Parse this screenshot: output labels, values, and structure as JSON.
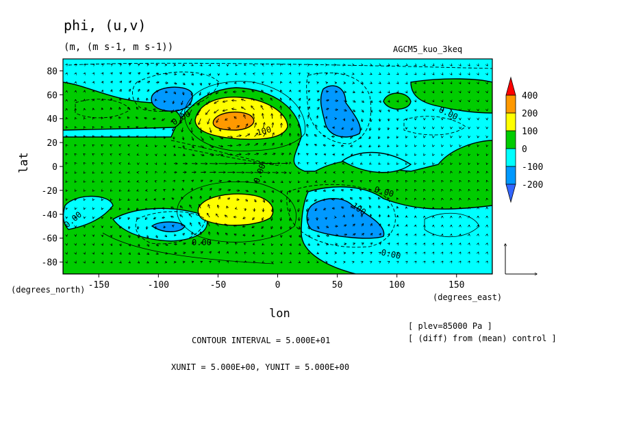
{
  "chart_data": {
    "type": "contour-vector-map",
    "title": "phi, (u,v)",
    "units": "(m, (m s-1, m s-1))",
    "experiment": "AGCM5_kuo_3keq",
    "xlabel": "lon",
    "ylabel": "lat",
    "x_units": "(degrees_east)",
    "y_units": "(degrees_north)",
    "xlim": [
      -180,
      180
    ],
    "ylim": [
      -90,
      90
    ],
    "xticks": [
      -150,
      -100,
      -50,
      0,
      50,
      100,
      150
    ],
    "yticks": [
      80,
      60,
      40,
      20,
      0,
      -20,
      -40,
      -60,
      -80
    ],
    "colorbar": {
      "levels": [
        "400",
        "200",
        "100",
        "0",
        "-100",
        "-200"
      ],
      "colors": [
        "#ff0000",
        "#ff9900",
        "#ffff00",
        "#00cc00",
        "#00ffff",
        "#0099ff",
        "#3366ff"
      ]
    },
    "contour_labels": [
      "0.00",
      "0.00",
      "100",
      "0.00",
      "0.00",
      "100",
      "0.00",
      "0.00",
      "0.00"
    ],
    "anomalies": [
      {
        "lon": -40,
        "lat": 37,
        "value": 200
      },
      {
        "lon": -38,
        "lat": -35,
        "value": 100
      },
      {
        "lon": -95,
        "lat": 55,
        "value": -100
      },
      {
        "lon": 48,
        "lat": 38,
        "value": -100
      },
      {
        "lon": 48,
        "lat": -42,
        "value": -100
      },
      {
        "lon": -85,
        "lat": -52,
        "value": -100
      },
      {
        "lon": 90,
        "lat": 52,
        "value": 0
      }
    ],
    "contour_interval": "CONTOUR INTERVAL = 5.000E+01",
    "vector_units": "XUNIT = 5.000E+00, YUNIT = 5.000E+00",
    "level_note": "[ plev=85000 Pa ]",
    "diff_note": "[ (diff) from (mean) control ]"
  }
}
